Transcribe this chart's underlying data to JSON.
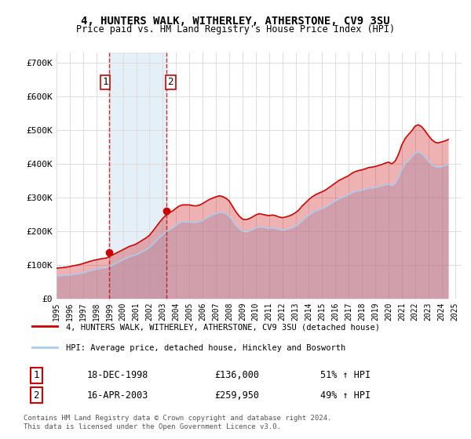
{
  "title": "4, HUNTERS WALK, WITHERLEY, ATHERSTONE, CV9 3SU",
  "subtitle": "Price paid vs. HM Land Registry's House Price Index (HPI)",
  "xlabel": "",
  "ylabel": "",
  "ylim": [
    0,
    730000
  ],
  "xlim_start": 1995.0,
  "xlim_end": 2025.5,
  "yticks": [
    0,
    100000,
    200000,
    300000,
    400000,
    500000,
    600000,
    700000
  ],
  "ytick_labels": [
    "£0",
    "£100K",
    "£200K",
    "£300K",
    "£400K",
    "£500K",
    "£600K",
    "£700K"
  ],
  "xticks": [
    1995,
    1996,
    1997,
    1998,
    1999,
    2000,
    2001,
    2002,
    2003,
    2004,
    2005,
    2006,
    2007,
    2008,
    2009,
    2010,
    2011,
    2012,
    2013,
    2014,
    2015,
    2016,
    2017,
    2018,
    2019,
    2020,
    2021,
    2022,
    2023,
    2024,
    2025
  ],
  "background_color": "#ffffff",
  "plot_bg_color": "#ffffff",
  "grid_color": "#dddddd",
  "hpi_color": "#aaccee",
  "price_color": "#cc0000",
  "purchase1_date": 1998.96,
  "purchase1_price": 136000,
  "purchase1_label": "1",
  "purchase1_hpi_pct": "51% ↑ HPI",
  "purchase1_date_str": "18-DEC-1998",
  "purchase2_date": 2003.29,
  "purchase2_price": 259950,
  "purchase2_label": "2",
  "purchase2_hpi_pct": "49% ↑ HPI",
  "purchase2_date_str": "16-APR-2003",
  "legend_line1": "4, HUNTERS WALK, WITHERLEY, ATHERSTONE, CV9 3SU (detached house)",
  "legend_line2": "HPI: Average price, detached house, Hinckley and Bosworth",
  "footnote": "Contains HM Land Registry data © Crown copyright and database right 2024.\nThis data is licensed under the Open Government Licence v3.0.",
  "hpi_data_x": [
    1995.0,
    1995.25,
    1995.5,
    1995.75,
    1996.0,
    1996.25,
    1996.5,
    1996.75,
    1997.0,
    1997.25,
    1997.5,
    1997.75,
    1998.0,
    1998.25,
    1998.5,
    1998.75,
    1999.0,
    1999.25,
    1999.5,
    1999.75,
    2000.0,
    2000.25,
    2000.5,
    2000.75,
    2001.0,
    2001.25,
    2001.5,
    2001.75,
    2002.0,
    2002.25,
    2002.5,
    2002.75,
    2003.0,
    2003.25,
    2003.5,
    2003.75,
    2004.0,
    2004.25,
    2004.5,
    2004.75,
    2005.0,
    2005.25,
    2005.5,
    2005.75,
    2006.0,
    2006.25,
    2006.5,
    2006.75,
    2007.0,
    2007.25,
    2007.5,
    2007.75,
    2008.0,
    2008.25,
    2008.5,
    2008.75,
    2009.0,
    2009.25,
    2009.5,
    2009.75,
    2010.0,
    2010.25,
    2010.5,
    2010.75,
    2011.0,
    2011.25,
    2011.5,
    2011.75,
    2012.0,
    2012.25,
    2012.5,
    2012.75,
    2013.0,
    2013.25,
    2013.5,
    2013.75,
    2014.0,
    2014.25,
    2014.5,
    2014.75,
    2015.0,
    2015.25,
    2015.5,
    2015.75,
    2016.0,
    2016.25,
    2016.5,
    2016.75,
    2017.0,
    2017.25,
    2017.5,
    2017.75,
    2018.0,
    2018.25,
    2018.5,
    2018.75,
    2019.0,
    2019.25,
    2019.5,
    2019.75,
    2020.0,
    2020.25,
    2020.5,
    2020.75,
    2021.0,
    2021.25,
    2021.5,
    2021.75,
    2022.0,
    2022.25,
    2022.5,
    2022.75,
    2023.0,
    2023.25,
    2023.5,
    2023.75,
    2024.0,
    2024.25,
    2024.5
  ],
  "hpi_data_y": [
    68000,
    67500,
    68500,
    69000,
    70000,
    71000,
    72500,
    74000,
    76000,
    79000,
    82000,
    85000,
    87000,
    89000,
    91000,
    92000,
    95000,
    100000,
    105000,
    110000,
    115000,
    120000,
    124000,
    127000,
    130000,
    135000,
    140000,
    145000,
    152000,
    162000,
    172000,
    182000,
    190000,
    198000,
    205000,
    210000,
    218000,
    225000,
    228000,
    228000,
    227000,
    226000,
    226000,
    228000,
    232000,
    238000,
    244000,
    248000,
    252000,
    256000,
    256000,
    252000,
    245000,
    232000,
    218000,
    208000,
    200000,
    198000,
    200000,
    205000,
    210000,
    213000,
    212000,
    210000,
    208000,
    210000,
    208000,
    205000,
    203000,
    204000,
    207000,
    210000,
    215000,
    222000,
    232000,
    240000,
    248000,
    255000,
    260000,
    264000,
    267000,
    272000,
    278000,
    284000,
    290000,
    296000,
    300000,
    304000,
    308000,
    314000,
    318000,
    320000,
    322000,
    325000,
    328000,
    328000,
    330000,
    332000,
    335000,
    338000,
    340000,
    335000,
    342000,
    360000,
    385000,
    400000,
    410000,
    420000,
    432000,
    435000,
    430000,
    420000,
    408000,
    398000,
    392000,
    390000,
    392000,
    395000,
    398000
  ],
  "price_data_x": [
    1995.0,
    1995.25,
    1995.5,
    1995.75,
    1996.0,
    1996.25,
    1996.5,
    1996.75,
    1997.0,
    1997.25,
    1997.5,
    1997.75,
    1998.0,
    1998.25,
    1998.5,
    1998.75,
    1999.0,
    1999.25,
    1999.5,
    1999.75,
    2000.0,
    2000.25,
    2000.5,
    2000.75,
    2001.0,
    2001.25,
    2001.5,
    2001.75,
    2002.0,
    2002.25,
    2002.5,
    2002.75,
    2003.0,
    2003.25,
    2003.5,
    2003.75,
    2004.0,
    2004.25,
    2004.5,
    2004.75,
    2005.0,
    2005.25,
    2005.5,
    2005.75,
    2006.0,
    2006.25,
    2006.5,
    2006.75,
    2007.0,
    2007.25,
    2007.5,
    2007.75,
    2008.0,
    2008.25,
    2008.5,
    2008.75,
    2009.0,
    2009.25,
    2009.5,
    2009.75,
    2010.0,
    2010.25,
    2010.5,
    2010.75,
    2011.0,
    2011.25,
    2011.5,
    2011.75,
    2012.0,
    2012.25,
    2012.5,
    2012.75,
    2013.0,
    2013.25,
    2013.5,
    2013.75,
    2014.0,
    2014.25,
    2014.5,
    2014.75,
    2015.0,
    2015.25,
    2015.5,
    2015.75,
    2016.0,
    2016.25,
    2016.5,
    2016.75,
    2017.0,
    2017.25,
    2017.5,
    2017.75,
    2018.0,
    2018.25,
    2018.5,
    2018.75,
    2019.0,
    2019.25,
    2019.5,
    2019.75,
    2020.0,
    2020.25,
    2020.5,
    2020.75,
    2021.0,
    2021.25,
    2021.5,
    2021.75,
    2022.0,
    2022.25,
    2022.5,
    2022.75,
    2023.0,
    2023.25,
    2023.5,
    2023.75,
    2024.0,
    2024.25,
    2024.5
  ],
  "price_data_y": [
    90000,
    91000,
    92000,
    93000,
    95000,
    97000,
    99000,
    101000,
    104000,
    107000,
    110000,
    113000,
    115000,
    117000,
    119000,
    120000,
    125000,
    130000,
    135000,
    140000,
    145000,
    150000,
    155000,
    158000,
    162000,
    168000,
    174000,
    180000,
    188000,
    200000,
    213000,
    226000,
    238000,
    248000,
    255000,
    260000,
    268000,
    275000,
    278000,
    278000,
    278000,
    276000,
    275000,
    277000,
    282000,
    288000,
    294000,
    298000,
    302000,
    305000,
    303000,
    298000,
    290000,
    274000,
    258000,
    245000,
    236000,
    234000,
    237000,
    242000,
    248000,
    252000,
    250000,
    248000,
    246000,
    248000,
    246000,
    242000,
    240000,
    242000,
    245000,
    249000,
    255000,
    263000,
    275000,
    284000,
    294000,
    302000,
    308000,
    313000,
    317000,
    322000,
    329000,
    336000,
    343000,
    350000,
    355000,
    360000,
    365000,
    372000,
    377000,
    380000,
    382000,
    385000,
    389000,
    390000,
    392000,
    395000,
    398000,
    402000,
    405000,
    400000,
    408000,
    428000,
    456000,
    475000,
    487000,
    498000,
    512000,
    516000,
    510000,
    498000,
    484000,
    472000,
    464000,
    462000,
    465000,
    468000,
    472000
  ],
  "shade_x1": 1998.96,
  "shade_x2": 2003.29
}
